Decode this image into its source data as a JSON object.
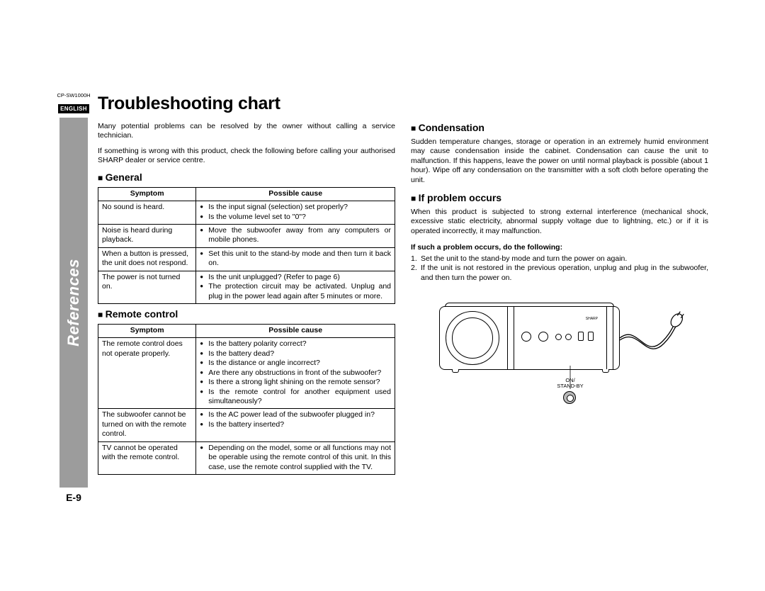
{
  "model": "CP-SW1000H",
  "language_badge": "ENGLISH",
  "side_label": "References",
  "page_number": "E-9",
  "title": "Troubleshooting chart",
  "intro1": "Many potential problems can be resolved by the owner without calling a service technician.",
  "intro2": "If something is wrong with this product, check the following before calling your authorised SHARP dealer or service centre.",
  "sections": {
    "general": {
      "heading": "General",
      "col1": "Symptom",
      "col2": "Possible cause",
      "rows": [
        {
          "symptom": "No sound is heard.",
          "causes": [
            "Is the input signal (selection) set properly?",
            "Is the volume level set to \"0\"?"
          ]
        },
        {
          "symptom": "Noise is heard during playback.",
          "causes": [
            "Move the subwoofer away from any computers or mobile phones."
          ]
        },
        {
          "symptom": "When a button is pressed, the unit does not respond.",
          "causes": [
            "Set this unit to the stand-by mode and then turn it back on."
          ]
        },
        {
          "symptom": "The power is not turned on.",
          "causes": [
            "Is the unit unplugged? (Refer to page 6)",
            "The protection circuit may be activated. Unplug and plug in the power lead again after 5 minutes or more."
          ]
        }
      ]
    },
    "remote": {
      "heading": "Remote control",
      "col1": "Symptom",
      "col2": "Possible cause",
      "rows": [
        {
          "symptom": "The remote control does not operate properly.",
          "causes": [
            "Is the battery polarity correct?",
            "Is the battery dead?",
            "Is the distance or angle incorrect?",
            "Are there any obstructions in front of the subwoofer?",
            "Is there a strong light shining on the remote sensor?",
            "Is the remote control for another equipment used simultaneously?"
          ]
        },
        {
          "symptom": "The subwoofer cannot be turned on with the remote control.",
          "causes": [
            "Is the AC power lead of the subwoofer plugged in?",
            "Is the battery inserted?"
          ]
        },
        {
          "symptom": "TV cannot be operated with the remote control.",
          "causes": [
            "Depending on the model, some or all functions may not be operable using the remote control of this unit. In this case, use the remote control supplied with the TV."
          ]
        }
      ]
    },
    "condensation": {
      "heading": "Condensation",
      "body": "Sudden temperature changes, storage or operation in an extremely humid environment may cause condensation inside the cabinet. Condensation can cause the unit to malfunction. If this happens, leave the power on until normal playback is possible (about 1 hour). Wipe off any condensation on the transmitter with a soft cloth before operating the unit."
    },
    "problem": {
      "heading": "If problem occurs",
      "body": "When this product is subjected to strong external interference (mechanical shock, excessive static electricity, abnormal supply voltage due to lightning, etc.) or if it is operated incorrectly, it may malfunction.",
      "subhead": "If such a problem occurs, do the following:",
      "steps": [
        "Set the unit to the stand-by mode and turn the power on again.",
        "If the unit is not restored in the previous operation, unplug and plug in the subwoofer, and then turn the power on."
      ]
    }
  },
  "figure": {
    "label1": "ON/",
    "label2": "STAND-BY",
    "brand": "SHARP"
  },
  "colors": {
    "sidebar_gray": "#9c9c9c",
    "text": "#000000",
    "background": "#ffffff",
    "button_fill": "#b8b8b8"
  }
}
